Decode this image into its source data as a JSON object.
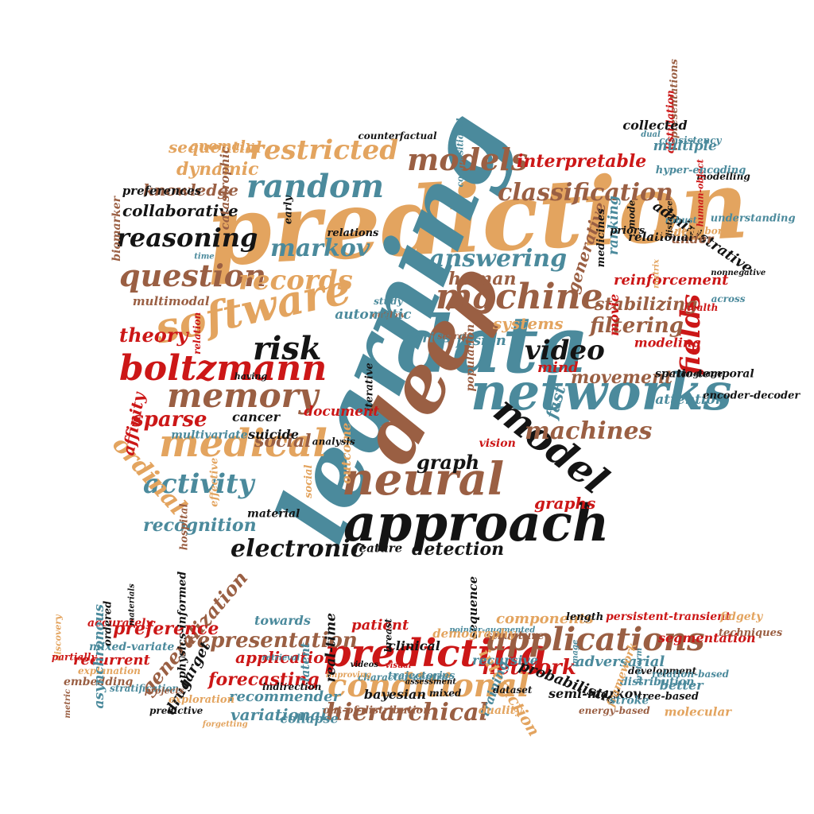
{
  "colors": {
    "tan": "#e3a45f",
    "brown": "#9a5f43",
    "teal": "#4b8a9c",
    "red": "#cc1717",
    "black": "#141414"
  },
  "words": [
    {
      "text": "prediction",
      "color": "tan"
    },
    {
      "text": "learning",
      "color": "teal"
    },
    {
      "text": "data",
      "color": "teal"
    },
    {
      "text": "deep",
      "color": "brown"
    },
    {
      "text": "networks",
      "color": "teal"
    },
    {
      "text": "approach",
      "color": "black"
    },
    {
      "text": "neural",
      "color": "brown"
    },
    {
      "text": "software",
      "color": "tan"
    },
    {
      "text": "boltzmann",
      "color": "red"
    },
    {
      "text": "memory",
      "color": "brown"
    },
    {
      "text": "medical",
      "color": "tan"
    },
    {
      "text": "machine",
      "color": "brown"
    },
    {
      "text": "model",
      "color": "black"
    },
    {
      "text": "random",
      "color": "teal"
    },
    {
      "text": "models",
      "color": "brown"
    },
    {
      "text": "restricted",
      "color": "tan"
    },
    {
      "text": "classification",
      "color": "brown"
    },
    {
      "text": "reasoning",
      "color": "black"
    },
    {
      "text": "question",
      "color": "brown"
    },
    {
      "text": "records",
      "color": "tan"
    },
    {
      "text": "answering",
      "color": "teal"
    },
    {
      "text": "markov",
      "color": "teal"
    },
    {
      "text": "risk",
      "color": "black"
    },
    {
      "text": "video",
      "color": "black"
    },
    {
      "text": "fields",
      "color": "red"
    },
    {
      "text": "activity",
      "color": "teal"
    },
    {
      "text": "electronic",
      "color": "black"
    },
    {
      "text": "machines",
      "color": "brown"
    },
    {
      "text": "sparse",
      "color": "red"
    },
    {
      "text": "filtering",
      "color": "brown"
    },
    {
      "text": "stabilizing",
      "color": "brown"
    },
    {
      "text": "recognition",
      "color": "teal"
    },
    {
      "text": "detection",
      "color": "black"
    },
    {
      "text": "graph",
      "color": "black"
    },
    {
      "text": "collaborative",
      "color": "black"
    },
    {
      "text": "knowledge",
      "color": "brown"
    },
    {
      "text": "sequential",
      "color": "tan"
    },
    {
      "text": "dynamic",
      "color": "tan"
    },
    {
      "text": "interpretable",
      "color": "red"
    },
    {
      "text": "ordinal",
      "color": "tan"
    },
    {
      "text": "human",
      "color": "brown"
    },
    {
      "text": "systems",
      "color": "tan"
    },
    {
      "text": "theory",
      "color": "red"
    },
    {
      "text": "movement",
      "color": "brown"
    },
    {
      "text": "reinforcement",
      "color": "red"
    },
    {
      "text": "administrative",
      "color": "black"
    },
    {
      "text": "generative",
      "color": "brown"
    },
    {
      "text": "social",
      "color": "brown"
    },
    {
      "text": "graphs",
      "color": "red"
    },
    {
      "text": "fast",
      "color": "teal"
    },
    {
      "text": "affinity",
      "color": "red"
    },
    {
      "text": "cancer",
      "color": "black"
    },
    {
      "text": "suicide",
      "color": "black"
    },
    {
      "text": "mind",
      "color": "red"
    },
    {
      "text": "fusion",
      "color": "teal"
    },
    {
      "text": "predicting",
      "color": "red"
    },
    {
      "text": "applications",
      "color": "brown"
    },
    {
      "text": "conditional",
      "color": "tan"
    },
    {
      "text": "hierarchical",
      "color": "brown"
    },
    {
      "text": "representation",
      "color": "brown"
    },
    {
      "text": "network",
      "color": "red"
    },
    {
      "text": "generalization",
      "color": "brown"
    },
    {
      "text": "forecasting",
      "color": "red"
    },
    {
      "text": "variational",
      "color": "teal"
    },
    {
      "text": "recommender",
      "color": "teal"
    },
    {
      "text": "interaction",
      "color": "tan"
    },
    {
      "text": "adversarial",
      "color": "teal"
    },
    {
      "text": "probabilistic",
      "color": "black"
    },
    {
      "text": "components",
      "color": "tan"
    },
    {
      "text": "semi-markov",
      "color": "black"
    },
    {
      "text": "preference",
      "color": "red"
    },
    {
      "text": "application",
      "color": "red"
    },
    {
      "text": "patient",
      "color": "red"
    },
    {
      "text": "clinical",
      "color": "black"
    },
    {
      "text": "training",
      "color": "teal"
    },
    {
      "text": "segmentation",
      "color": "red"
    },
    {
      "text": "persistent-transient",
      "color": "red"
    },
    {
      "text": "drug",
      "color": "black"
    },
    {
      "text": "target",
      "color": "black"
    },
    {
      "text": "recurrent",
      "color": "red"
    },
    {
      "text": "embedding",
      "color": "brown"
    },
    {
      "text": "mixed-variate",
      "color": "teal"
    },
    {
      "text": "accurately",
      "color": "red"
    },
    {
      "text": "explanation",
      "color": "tan"
    },
    {
      "text": "towards",
      "color": "teal"
    },
    {
      "text": "stratification",
      "color": "teal"
    },
    {
      "text": "duality",
      "color": "tan"
    },
    {
      "text": "dataset",
      "color": "black"
    },
    {
      "text": "distribution",
      "color": "teal"
    },
    {
      "text": "development",
      "color": "black"
    },
    {
      "text": "tree-based",
      "color": "black"
    },
    {
      "text": "fidgety",
      "color": "tan"
    },
    {
      "text": "framework",
      "color": "tan"
    },
    {
      "text": "techniques",
      "color": "brown"
    },
    {
      "text": "length",
      "color": "black"
    },
    {
      "text": "relation-based",
      "color": "teal"
    },
    {
      "text": "energy-based",
      "color": "brown"
    },
    {
      "text": "exploration",
      "color": "tan"
    },
    {
      "text": "predictive",
      "color": "black"
    },
    {
      "text": "indirection",
      "color": "black"
    },
    {
      "text": "mixed",
      "color": "black"
    },
    {
      "text": "trajectories",
      "color": "teal"
    },
    {
      "text": "character-centric",
      "color": "teal"
    },
    {
      "text": "matrix",
      "color": "tan"
    },
    {
      "text": "improving",
      "color": "tan"
    },
    {
      "text": "study",
      "color": "teal"
    },
    {
      "text": "representations",
      "color": "brown"
    },
    {
      "text": "structure",
      "color": "brown"
    },
    {
      "text": "anomaly",
      "color": "tan"
    },
    {
      "text": "ranking",
      "color": "teal"
    },
    {
      "text": "latent",
      "color": "teal"
    },
    {
      "text": "hospital",
      "color": "brown"
    },
    {
      "text": "robust",
      "color": "teal"
    },
    {
      "text": "retrieval",
      "color": "teal"
    },
    {
      "text": "effective",
      "color": "tan"
    },
    {
      "text": "under",
      "color": "brown"
    },
    {
      "text": "ordered",
      "color": "black"
    },
    {
      "text": "multimodal",
      "color": "brown"
    },
    {
      "text": "understanding",
      "color": "teal"
    },
    {
      "text": "out-of-distribution",
      "color": "brown"
    },
    {
      "text": "catastrophic",
      "color": "brown"
    },
    {
      "text": "modeling",
      "color": "red"
    },
    {
      "text": "molecular",
      "color": "tan"
    },
    {
      "text": "counterfactual",
      "color": "black"
    },
    {
      "text": "relational",
      "color": "black"
    },
    {
      "text": "forgetting",
      "color": "tan"
    },
    {
      "text": "outflow",
      "color": "brown"
    },
    {
      "text": "spatio-temporal",
      "color": "black"
    },
    {
      "text": "asynchronous",
      "color": "teal"
    },
    {
      "text": "preferences",
      "color": "black"
    },
    {
      "text": "language",
      "color": "black"
    },
    {
      "text": "materials",
      "color": "black"
    },
    {
      "text": "outcome",
      "color": "tan"
    },
    {
      "text": "consistency",
      "color": "teal"
    },
    {
      "text": "discovery",
      "color": "tan"
    },
    {
      "text": "compositional",
      "color": "teal"
    },
    {
      "text": "distillation",
      "color": "red"
    },
    {
      "text": "videos",
      "color": "black"
    },
    {
      "text": "analysis",
      "color": "black"
    },
    {
      "text": "health",
      "color": "red"
    },
    {
      "text": "metric",
      "color": "brown"
    },
    {
      "text": "time",
      "color": "teal"
    },
    {
      "text": "predict",
      "color": "tan"
    },
    {
      "text": "visual",
      "color": "red"
    },
    {
      "text": "series",
      "color": "teal"
    },
    {
      "text": "attention",
      "color": "teal"
    },
    {
      "text": "bayesian",
      "color": "black"
    },
    {
      "text": "feature",
      "color": "black"
    },
    {
      "text": "multiple",
      "color": "teal"
    },
    {
      "text": "recursive",
      "color": "teal"
    },
    {
      "text": "automatic",
      "color": "teal"
    },
    {
      "text": "priors",
      "color": "black"
    },
    {
      "text": "sequence",
      "color": "black"
    },
    {
      "text": "relation",
      "color": "red"
    },
    {
      "text": "nonnegative",
      "color": "black"
    },
    {
      "text": "projects",
      "color": "brown"
    },
    {
      "text": "material",
      "color": "black"
    },
    {
      "text": "modelling",
      "color": "black"
    },
    {
      "text": "preterm",
      "color": "teal"
    },
    {
      "text": "relations",
      "color": "black"
    },
    {
      "text": "dual",
      "color": "teal"
    },
    {
      "text": "real-time",
      "color": "black"
    },
    {
      "text": "early",
      "color": "black"
    },
    {
      "text": "movie",
      "color": "red"
    },
    {
      "text": "breast",
      "color": "black"
    },
    {
      "text": "search",
      "color": "brown"
    },
    {
      "text": "encoder-decoder",
      "color": "black"
    },
    {
      "text": "image",
      "color": "teal"
    },
    {
      "text": "multivariate",
      "color": "teal"
    },
    {
      "text": "mode",
      "color": "black"
    },
    {
      "text": "better",
      "color": "teal"
    },
    {
      "text": "having",
      "color": "black"
    },
    {
      "text": "across",
      "color": "teal"
    },
    {
      "text": "assessment",
      "color": "black"
    },
    {
      "text": "vision",
      "color": "red"
    },
    {
      "text": "distance",
      "color": "black"
    },
    {
      "text": "collapse",
      "color": "teal"
    },
    {
      "text": "social",
      "color": "tan"
    },
    {
      "text": "human-object",
      "color": "red"
    },
    {
      "text": "partially",
      "color": "red"
    },
    {
      "text": "population",
      "color": "brown"
    },
    {
      "text": "hyper-encoding",
      "color": "teal"
    },
    {
      "text": "physics-informed",
      "color": "black"
    },
    {
      "text": "iterative",
      "color": "black"
    },
    {
      "text": "medicines",
      "color": "black"
    },
    {
      "text": "pointer-augmented",
      "color": "teal"
    },
    {
      "text": "document",
      "color": "red"
    },
    {
      "text": "collected",
      "color": "black"
    },
    {
      "text": "stroke",
      "color": "teal"
    },
    {
      "text": "biomarker",
      "color": "brown"
    },
    {
      "text": "neighbor",
      "color": "tan"
    },
    {
      "text": "demography",
      "color": "tan"
    }
  ]
}
